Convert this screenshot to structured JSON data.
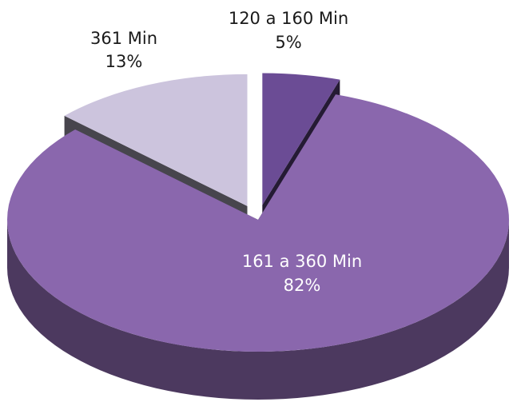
{
  "chart_data": {
    "type": "pie",
    "title": "",
    "slices": [
      {
        "label": "120 a 160 Min",
        "value": 5,
        "value_label": "5%",
        "exploded": true,
        "color": "#6b4c95"
      },
      {
        "label": "161 a 360 Min",
        "value": 82,
        "value_label": "82%",
        "exploded": false,
        "color": "#8a67ad"
      },
      {
        "label": "361 Min",
        "value": 13,
        "value_label": "13%",
        "exploded": true,
        "color": "#ccc4dd"
      }
    ],
    "style": {
      "three_d": true
    },
    "label_colors": {
      "inside": "#ffffff",
      "outside": "#1a1a1a"
    }
  }
}
